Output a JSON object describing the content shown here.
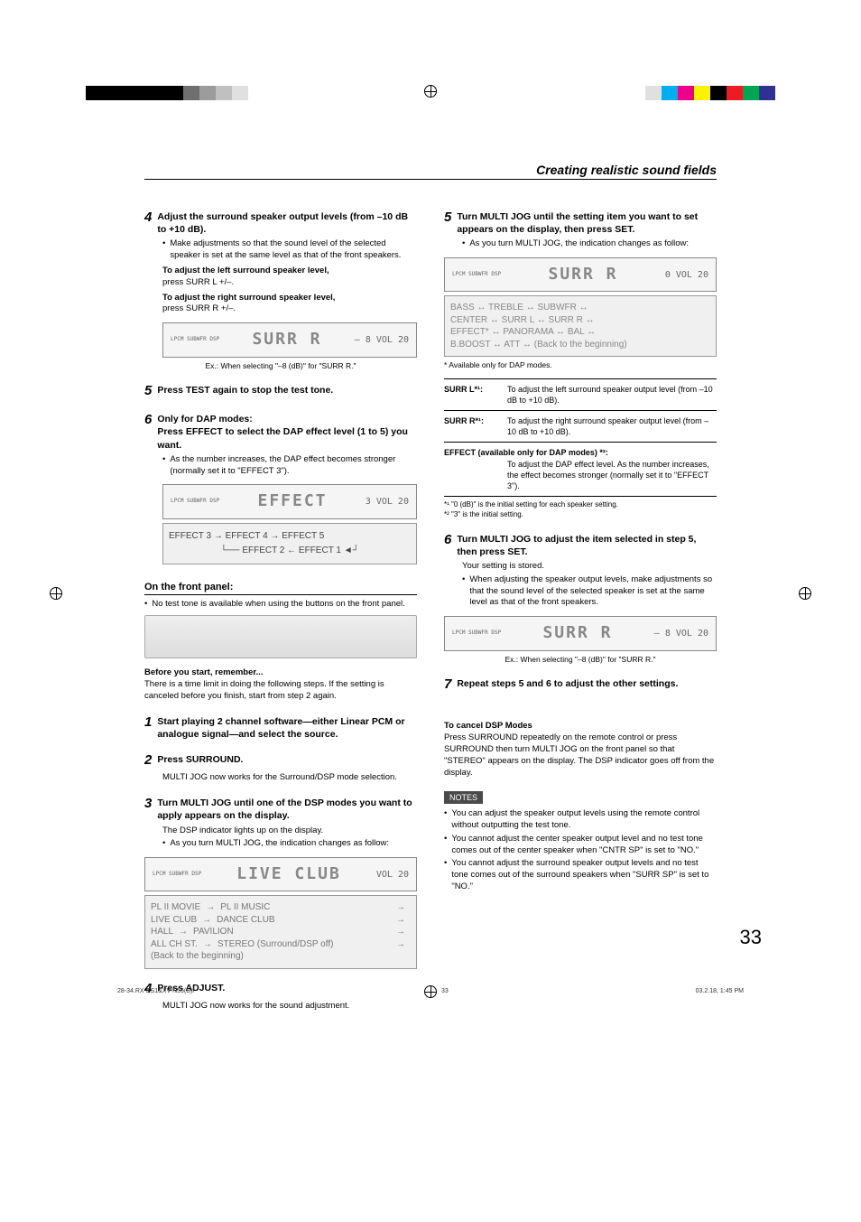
{
  "colorbar_left": [
    "#000000",
    "#000000",
    "#000000",
    "#000000",
    "#000000",
    "#000000",
    "#6f6f6f",
    "#9c9c9c",
    "#c0c0c0",
    "#e0e0e0"
  ],
  "colorbar_right": [
    "#e0e0e0",
    "#00aeef",
    "#ec008c",
    "#fff200",
    "#000000",
    "#ed1c24",
    "#00a651",
    "#2e3192"
  ],
  "section_title": "Creating realistic sound fields",
  "left": {
    "s4": {
      "num": "4",
      "head": "Adjust the surround speaker output levels (from –10 dB to +10 dB).",
      "b1": "Make adjustments so that the sound level of the selected speaker is set at the same level as that of the front speakers.",
      "l1": "To adjust the left surround speaker level,",
      "l2": "press SURR L +/–.",
      "l3": "To adjust the right surround speaker level,",
      "l4": "press SURR R +/–.",
      "lcd_indicators": "LPCM   SUBWFR   DSP",
      "lcd_main": "SURR   R",
      "lcd_vol": "– 8 VOL 20",
      "cap": "Ex.: When selecting \"–8 (dB)\" for \"SURR R.\""
    },
    "s5": {
      "num": "5",
      "head": "Press TEST again to stop the test tone."
    },
    "s6": {
      "num": "6",
      "head1": "Only for DAP modes:",
      "head2": "Press EFFECT to select the DAP effect level (1 to 5) you want.",
      "b1": "As the number increases, the DAP effect becomes stronger (normally set it to \"EFFECT 3\").",
      "lcd_main": "EFFECT",
      "lcd_vol": "3 VOL 20",
      "chain1": "EFFECT 3  →  EFFECT 4  →  EFFECT 5",
      "chain2": "EFFECT 2  ←  EFFECT 1"
    },
    "panel_heading": "On the front panel:",
    "panel_note": "No test tone is available when using the buttons on the front panel.",
    "before_head": "Before you start, remember...",
    "before_body": "There is a time limit in doing the following steps. If the setting is canceled before you finish, start from step 2 again.",
    "p1": {
      "num": "1",
      "head": "Start playing 2 channel software—either Linear PCM or analogue signal—and select the source."
    },
    "p2": {
      "num": "2",
      "head": "Press SURROUND.",
      "body": "MULTI JOG now works for the Surround/DSP mode selection."
    },
    "p3": {
      "num": "3",
      "head": "Turn MULTI JOG until one of the DSP modes you want to apply appears on the display.",
      "b1": "The DSP indicator lights up on the display.",
      "b2": "As you turn MULTI JOG, the indication changes as follow:",
      "lcd_main": "LIVE  CLUB",
      "lcd_vol": "VOL 20",
      "r1a": "PL II MOVIE",
      "r1b": "PL II MUSIC",
      "r2a": "LIVE CLUB",
      "r2b": "DANCE CLUB",
      "r3a": "HALL",
      "r3b": "PAVILION",
      "r4a": "ALL CH ST.",
      "r4b": "STEREO (Surround/DSP off)",
      "r5": "(Back to the beginning)"
    },
    "p4": {
      "num": "4",
      "head": "Press ADJUST.",
      "body": "MULTI JOG now works for the sound adjustment."
    }
  },
  "right": {
    "s5": {
      "num": "5",
      "head": "Turn MULTI JOG until the setting item you want to set appears on the display, then press SET.",
      "b1": "As you turn MULTI JOG, the indication changes as follow:",
      "lcd_main": "SURR   R",
      "lcd_vol": "0 VOL 20",
      "r1": "BASS  ↔ TREBLE ↔ SUBWFR ↔",
      "r2": "CENTER ↔ SURR L ↔ SURR R ↔",
      "r3": "EFFECT* ↔ PANORAMA ↔ BAL ↔",
      "r4": "B.BOOST ↔ ATT ↔ (Back to the beginning)",
      "note": "* Available only for DAP modes."
    },
    "table": {
      "k1": "SURR L*¹:",
      "v1": "To adjust the left surround speaker output level (from –10 dB to +10 dB).",
      "k2": "SURR R*¹:",
      "v2": "To adjust the right surround speaker output level (from –10 dB to +10 dB).",
      "k3": "EFFECT (available only for DAP modes) *²:",
      "v3": "To adjust the DAP effect level. As the number increases, the effect becomes stronger (normally set it to \"EFFECT 3\")."
    },
    "fn1": "*¹ \"0 (dB)\" is the initial setting for each speaker setting.",
    "fn2": "*² \"3\" is the initial setting.",
    "s6": {
      "num": "6",
      "head": "Turn MULTI JOG to adjust the item selected in step 5, then press SET.",
      "l1": "Your setting is stored.",
      "b1": "When adjusting the speaker output levels, make adjustments so that the sound level of the selected speaker is set at the same level as that of the front speakers.",
      "lcd_main": "SURR   R",
      "lcd_vol": "– 8 VOL 20",
      "cap": "Ex.: When selecting \"–8 (dB)\" for \"SURR R.\""
    },
    "s7": {
      "num": "7",
      "head": "Repeat steps 5 and 6 to adjust the other settings."
    },
    "cancel_head": "To cancel DSP Modes",
    "cancel_body": "Press SURROUND repeatedly on the remote control or press SURROUND then turn MULTI JOG on the front panel so that \"STEREO\" appears on the display. The DSP indicator goes off from the display.",
    "notes_label": "NOTES",
    "n1": "You can adjust the speaker output levels using the remote control without outputting the test tone.",
    "n2": "You cannot adjust the center speaker output level and no test tone comes out of the center speaker when \"CNTR SP\" is set to \"NO.\"",
    "n3": "You cannot adjust the surround speaker output levels and no test tone comes out of the surround speakers when \"SURR SP\" is set to \"NO.\""
  },
  "page_num": "33",
  "footer": {
    "left": "28-34.RX-ES1&XV-N55(B)f",
    "mid": "33",
    "right": "03.2.18, 1:45 PM"
  }
}
